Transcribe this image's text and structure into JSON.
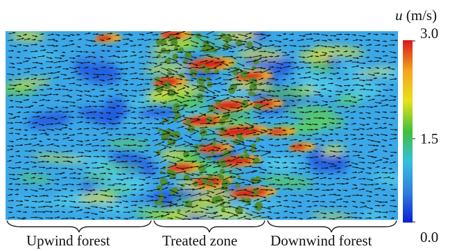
{
  "colorbar": {
    "variable": "u",
    "unit": "(m/s)",
    "ticks": [
      "3.0",
      "1.5",
      "0.0"
    ],
    "colors": [
      "#d7191c",
      "#f4a41c",
      "#e8e21a",
      "#3fbf3a",
      "#33c0e0",
      "#2f7fe0",
      "#0b1fd6"
    ]
  },
  "regions": [
    {
      "label": "Upwind forest"
    },
    {
      "label": "Treated zone"
    },
    {
      "label": "Downwind forest"
    }
  ],
  "field": {
    "background_color": "#3aa8e8",
    "vegetation_color": "#4f8a2a",
    "arrow_color": "#111111"
  }
}
